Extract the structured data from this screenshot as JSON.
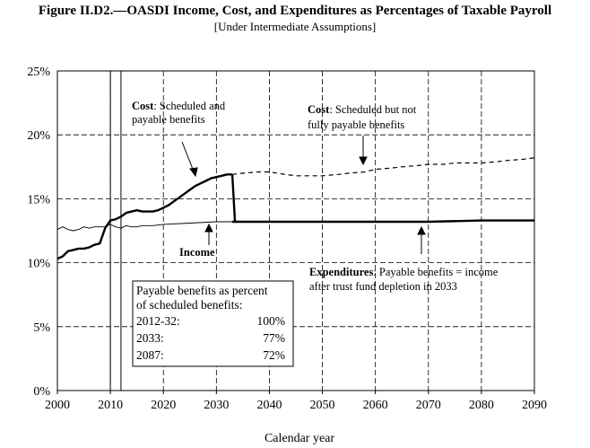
{
  "chart_data": {
    "type": "line",
    "title": "Figure II.D2.—OASDI Income, Cost, and Expenditures as Percentages of Taxable Payroll",
    "subtitle": "[Under Intermediate Assumptions]",
    "xlabel": "Calendar year",
    "ylabel": "",
    "xlim": [
      2000,
      2090
    ],
    "ylim": [
      0,
      25
    ],
    "x_ticks": [
      "2000",
      "2010",
      "2020",
      "2030",
      "2040",
      "2050",
      "2060",
      "2070",
      "2080",
      "2090"
    ],
    "y_ticks": [
      "0%",
      "5%",
      "10%",
      "15%",
      "20%",
      "25%"
    ],
    "grid": true,
    "vertical_markers": [
      2010,
      2012
    ],
    "series": [
      {
        "name": "Cost",
        "style": "thick-solid",
        "x": [
          2000,
          2001,
          2002,
          2003,
          2004,
          2005,
          2006,
          2007,
          2008,
          2009,
          2010,
          2011,
          2012,
          2013,
          2014,
          2015,
          2016,
          2017,
          2018,
          2019,
          2020,
          2021,
          2022,
          2023,
          2024,
          2025,
          2026,
          2027,
          2028,
          2029,
          2030,
          2031,
          2032,
          2033
        ],
        "values": [
          10.3,
          10.5,
          10.9,
          11.0,
          11.1,
          11.1,
          11.2,
          11.4,
          11.5,
          12.7,
          13.3,
          13.4,
          13.6,
          13.9,
          14.0,
          14.1,
          14.0,
          14.0,
          14.0,
          14.1,
          14.3,
          14.5,
          14.8,
          15.1,
          15.4,
          15.7,
          16.0,
          16.2,
          16.4,
          16.6,
          16.7,
          16.8,
          16.9,
          16.9
        ]
      },
      {
        "name": "Cost",
        "style": "dashed",
        "x": [
          2033,
          2035,
          2038,
          2040,
          2043,
          2045,
          2048,
          2050,
          2053,
          2055,
          2058,
          2060,
          2063,
          2065,
          2068,
          2070,
          2073,
          2075,
          2078,
          2080,
          2083,
          2085,
          2088,
          2090
        ],
        "values": [
          16.9,
          17.0,
          17.1,
          17.1,
          16.9,
          16.8,
          16.8,
          16.8,
          16.9,
          17.0,
          17.1,
          17.3,
          17.4,
          17.5,
          17.6,
          17.7,
          17.7,
          17.8,
          17.8,
          17.8,
          17.9,
          18.0,
          18.1,
          18.2
        ]
      },
      {
        "name": "Income",
        "style": "thin-solid",
        "x": [
          2000,
          2001,
          2002,
          2003,
          2004,
          2005,
          2006,
          2007,
          2008,
          2009,
          2010,
          2011,
          2012,
          2013,
          2014,
          2015,
          2016,
          2018,
          2020,
          2025,
          2030,
          2035,
          2040,
          2050,
          2060,
          2070,
          2080,
          2090
        ],
        "values": [
          12.6,
          12.8,
          12.6,
          12.5,
          12.6,
          12.8,
          12.7,
          12.8,
          12.8,
          12.8,
          13.0,
          12.8,
          12.7,
          12.9,
          12.8,
          12.8,
          12.9,
          12.9,
          13.0,
          13.1,
          13.2,
          13.2,
          13.2,
          13.2,
          13.2,
          13.2,
          13.3,
          13.3
        ]
      },
      {
        "name": "Expenditures",
        "style": "thick-solid",
        "x": [
          2033,
          2034,
          2040,
          2050,
          2060,
          2070,
          2080,
          2090
        ],
        "values": [
          13.2,
          13.2,
          13.2,
          13.2,
          13.2,
          13.2,
          13.3,
          13.3
        ]
      }
    ],
    "annotations": {
      "cost_payable_bold": "Cost",
      "cost_payable_line1": ": Scheduled and",
      "cost_payable_line2": "payable benefits",
      "cost_unpayable_bold": "Cost",
      "cost_unpayable_line1": ": Scheduled but not",
      "cost_unpayable_line2": "fully payable benefits",
      "income": "Income",
      "expend_bold": "Expenditures",
      "expend_line1": ": Payable benefits = income",
      "expend_line2": "after trust fund depletion in 2033"
    },
    "table": {
      "header1": "Payable benefits as percent",
      "header2": "of scheduled benefits:",
      "rows": [
        {
          "label": "2012-32:",
          "value": "100%"
        },
        {
          "label": "2033:",
          "value": "77%"
        },
        {
          "label": "2087:",
          "value": "72%"
        }
      ]
    }
  }
}
